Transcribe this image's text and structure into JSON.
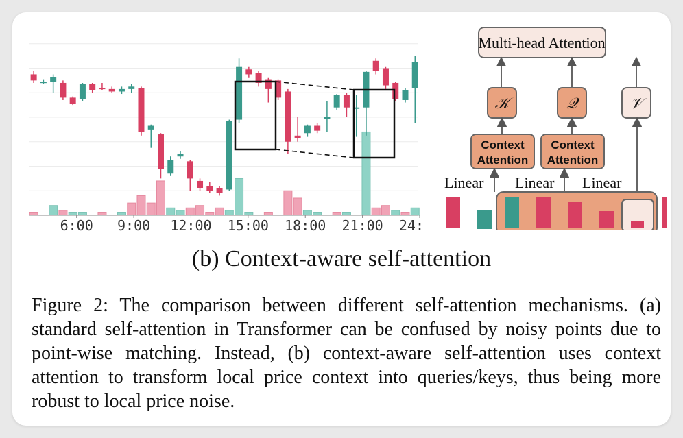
{
  "colors": {
    "up": "#3a9a8c",
    "down": "#d83f62",
    "up_volume": "#8fd3c6",
    "down_volume": "#f0a3b6",
    "box_fill": "#e9a27f",
    "box_light": "#f8e8e2",
    "box_stroke": "#666666"
  },
  "chart_data": {
    "type": "candlestick",
    "x_ticks": [
      "6:00",
      "9:00",
      "12:00",
      "15:00",
      "18:00",
      "21:00",
      "24:00"
    ],
    "candles": [
      {
        "x": 5.0,
        "open": 155,
        "close": 150,
        "high": 158,
        "low": 148
      },
      {
        "x": 5.6,
        "open": 148,
        "close": 149,
        "high": 151,
        "low": 147
      },
      {
        "x": 6.2,
        "open": 149,
        "close": 153,
        "high": 155,
        "low": 140
      },
      {
        "x": 6.8,
        "open": 148,
        "close": 136,
        "high": 150,
        "low": 134
      },
      {
        "x": 7.4,
        "open": 136,
        "close": 131,
        "high": 137,
        "low": 130
      },
      {
        "x": 8.0,
        "open": 135,
        "close": 147,
        "high": 148,
        "low": 133
      },
      {
        "x": 8.6,
        "open": 147,
        "close": 142,
        "high": 148,
        "low": 140
      },
      {
        "x": 9.2,
        "open": 144,
        "close": 143,
        "high": 148,
        "low": 142
      },
      {
        "x": 9.8,
        "open": 143,
        "close": 141,
        "high": 145,
        "low": 140
      },
      {
        "x": 10.4,
        "open": 141,
        "close": 143,
        "high": 145,
        "low": 139
      },
      {
        "x": 11.0,
        "open": 143,
        "close": 145,
        "high": 147,
        "low": 140
      },
      {
        "x": 11.6,
        "open": 144,
        "close": 108,
        "high": 145,
        "low": 105
      },
      {
        "x": 12.2,
        "open": 110,
        "close": 113,
        "high": 114,
        "low": 95
      },
      {
        "x": 12.8,
        "open": 106,
        "close": 78,
        "high": 107,
        "low": 70
      },
      {
        "x": 13.4,
        "open": 74,
        "close": 85,
        "high": 88,
        "low": 72
      },
      {
        "x": 14.0,
        "open": 88,
        "close": 90,
        "high": 92,
        "low": 86
      },
      {
        "x": 14.6,
        "open": 84,
        "close": 70,
        "high": 85,
        "low": 60
      },
      {
        "x": 15.2,
        "open": 68,
        "close": 62,
        "high": 70,
        "low": 60
      },
      {
        "x": 15.8,
        "open": 64,
        "close": 60,
        "high": 67,
        "low": 58
      },
      {
        "x": 16.4,
        "open": 62,
        "close": 58,
        "high": 64,
        "low": 56
      },
      {
        "x": 17.0,
        "open": 61,
        "close": 117,
        "high": 118,
        "low": 60
      },
      {
        "x": 17.6,
        "open": 118,
        "close": 161,
        "high": 168,
        "low": 115
      },
      {
        "x": 18.2,
        "open": 159,
        "close": 155,
        "high": 161,
        "low": 152
      },
      {
        "x": 18.8,
        "open": 156,
        "close": 148,
        "high": 158,
        "low": 145
      },
      {
        "x": 19.4,
        "open": 151,
        "close": 143,
        "high": 152,
        "low": 132
      },
      {
        "x": 20.0,
        "open": 150,
        "close": 136,
        "high": 151,
        "low": 134
      },
      {
        "x": 20.6,
        "open": 141,
        "close": 100,
        "high": 143,
        "low": 90
      },
      {
        "x": 21.2,
        "open": 105,
        "close": 103,
        "high": 120,
        "low": 100
      },
      {
        "x": 21.8,
        "open": 107,
        "close": 113,
        "high": 114,
        "low": 104
      },
      {
        "x": 22.4,
        "open": 113,
        "close": 109,
        "high": 115,
        "low": 107
      },
      {
        "x": 23.0,
        "open": 120,
        "close": 120,
        "high": 133,
        "low": 108
      },
      {
        "x": 23.6,
        "open": 128,
        "close": 138,
        "high": 139,
        "low": 126
      },
      {
        "x": 24.2,
        "open": 138,
        "close": 128,
        "high": 140,
        "low": 120
      },
      {
        "x": 24.8,
        "open": 127,
        "close": 128,
        "high": 138,
        "low": 104
      },
      {
        "x": 25.4,
        "open": 128,
        "close": 157,
        "high": 158,
        "low": 105
      },
      {
        "x": 26.0,
        "open": 166,
        "close": 158,
        "high": 168,
        "low": 155
      },
      {
        "x": 26.6,
        "open": 160,
        "close": 146,
        "high": 161,
        "low": 143
      },
      {
        "x": 27.2,
        "open": 148,
        "close": 135,
        "high": 149,
        "low": 133
      },
      {
        "x": 27.8,
        "open": 134,
        "close": 142,
        "high": 144,
        "low": 132
      },
      {
        "x": 28.4,
        "open": 144,
        "close": 165,
        "high": 170,
        "low": 115
      }
    ],
    "volume": [
      {
        "x": 5.0,
        "v": 1,
        "dir": "down"
      },
      {
        "x": 6.2,
        "v": 4,
        "dir": "up"
      },
      {
        "x": 6.8,
        "v": 2,
        "dir": "down"
      },
      {
        "x": 7.4,
        "v": 1,
        "dir": "up"
      },
      {
        "x": 8.0,
        "v": 1,
        "dir": "up"
      },
      {
        "x": 9.2,
        "v": 1,
        "dir": "down"
      },
      {
        "x": 10.4,
        "v": 1,
        "dir": "up"
      },
      {
        "x": 11.0,
        "v": 5,
        "dir": "down"
      },
      {
        "x": 11.6,
        "v": 8,
        "dir": "down"
      },
      {
        "x": 12.2,
        "v": 5,
        "dir": "down"
      },
      {
        "x": 12.8,
        "v": 14,
        "dir": "down"
      },
      {
        "x": 13.4,
        "v": 3,
        "dir": "up"
      },
      {
        "x": 14.0,
        "v": 2,
        "dir": "up"
      },
      {
        "x": 14.6,
        "v": 3,
        "dir": "down"
      },
      {
        "x": 15.2,
        "v": 4,
        "dir": "down"
      },
      {
        "x": 15.8,
        "v": 1,
        "dir": "down"
      },
      {
        "x": 16.4,
        "v": 3,
        "dir": "down"
      },
      {
        "x": 17.0,
        "v": 2,
        "dir": "up"
      },
      {
        "x": 17.6,
        "v": 15,
        "dir": "up"
      },
      {
        "x": 18.2,
        "v": 1,
        "dir": "up"
      },
      {
        "x": 19.4,
        "v": 1,
        "dir": "down"
      },
      {
        "x": 20.6,
        "v": 10,
        "dir": "down"
      },
      {
        "x": 21.2,
        "v": 7,
        "dir": "down"
      },
      {
        "x": 21.8,
        "v": 2,
        "dir": "up"
      },
      {
        "x": 22.4,
        "v": 1,
        "dir": "up"
      },
      {
        "x": 23.6,
        "v": 1,
        "dir": "down"
      },
      {
        "x": 24.2,
        "v": 1,
        "dir": "up"
      },
      {
        "x": 25.4,
        "v": 34,
        "dir": "up"
      },
      {
        "x": 26.0,
        "v": 3,
        "dir": "down"
      },
      {
        "x": 26.6,
        "v": 4,
        "dir": "down"
      },
      {
        "x": 27.2,
        "v": 2,
        "dir": "up"
      },
      {
        "x": 27.8,
        "v": 1,
        "dir": "down"
      },
      {
        "x": 28.4,
        "v": 3,
        "dir": "up"
      }
    ],
    "x_range": [
      4.7,
      28.6
    ],
    "y_range": [
      40,
      200
    ],
    "volume_range": [
      0,
      80
    ],
    "grid": "horizontal"
  },
  "diagram": {
    "multihead": "Multi-head Attention",
    "k": "𝒦",
    "q": "𝒬",
    "v": "𝒱",
    "context_line1": "Context",
    "context_line2": "Attention",
    "linear": "Linear"
  },
  "caption_b": "(b) Context-aware self-attention",
  "figure_caption": "Figure 2: The comparison between different self-attention mechanisms. (a) standard self-attention in Transformer can be confused by noisy points due to point-wise matching. Instead, (b) context-aware self-attention uses context attention to transform local price context into queries/keys, thus being more robust to local price noise."
}
